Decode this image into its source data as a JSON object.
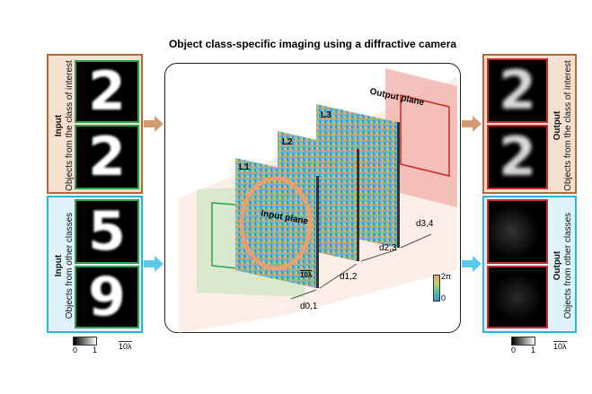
{
  "title": "Object class-specific imaging using a diffractive camera",
  "left": {
    "interest": {
      "label": "Input",
      "sub": "Objects from the class of interest",
      "digits": [
        "2",
        "2"
      ]
    },
    "other": {
      "label": "Input",
      "sub": "Objects from other classes",
      "digits": [
        "5",
        "9"
      ]
    },
    "colorbar": {
      "min": "0",
      "max": "1"
    },
    "scale": "10λ"
  },
  "right": {
    "interest": {
      "label": "Output",
      "sub": "Objects from the class of interest",
      "digits": [
        "2",
        "2"
      ]
    },
    "other": {
      "label": "Output",
      "sub": "Objects from other classes"
    },
    "colorbar": {
      "min": "0",
      "max": "1"
    },
    "scale": "10λ"
  },
  "diagram": {
    "input_plane": "Input plane",
    "output_plane": "Output plane",
    "layers": [
      "L1",
      "L2",
      "L3"
    ],
    "distances": [
      "d0,1",
      "d1,2",
      "d2,3",
      "d3,4"
    ],
    "layer_scale": "10λ",
    "phase_bar": {
      "max": "2π",
      "min": "0"
    }
  },
  "colors": {
    "interest": "#b5693b",
    "other": "#2ab4de",
    "input_frame": "#2aa44a",
    "output_frame": "#c8282a"
  }
}
